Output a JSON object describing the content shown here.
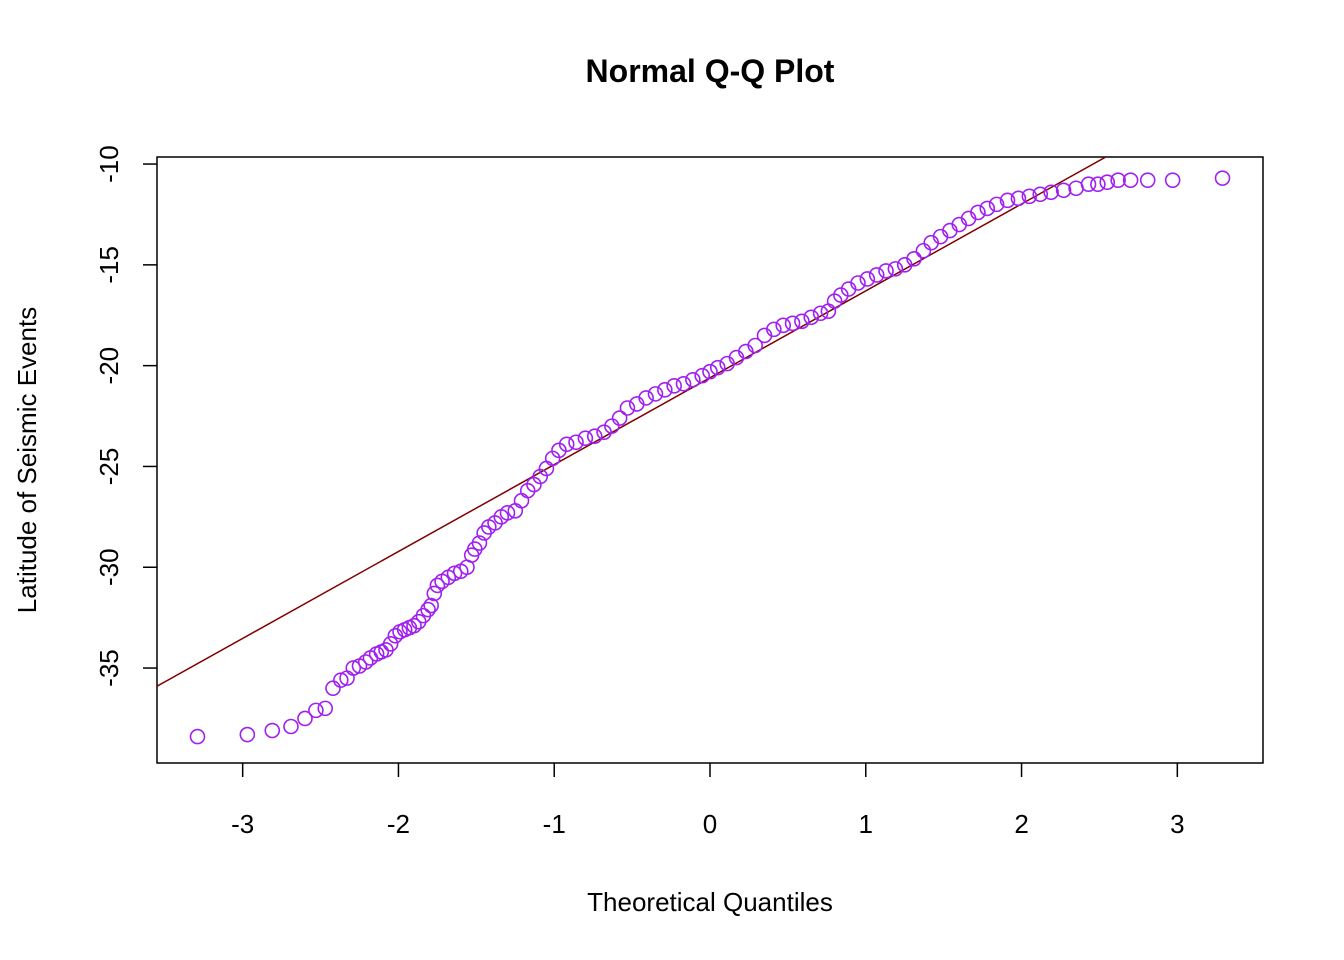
{
  "chart_data": {
    "type": "scatter",
    "title": "Normal Q-Q Plot",
    "x_label": "Theoretical Quantiles",
    "y_label": "Latitude of Seismic Events",
    "xlim": [
      -3.55,
      3.55
    ],
    "ylim": [
      -39.71,
      -9.65
    ],
    "xticks": [
      -3,
      -2,
      -1,
      0,
      1,
      2,
      3
    ],
    "yticks": [
      -10,
      -15,
      -20,
      -25,
      -30,
      -35
    ],
    "color": "#a020f0",
    "reference_line": {
      "intercept": -20.6,
      "slope": 4.31,
      "color": "#800000"
    },
    "x": [
      -3.29,
      -2.97,
      -2.81,
      -2.69,
      -2.6,
      -2.53,
      -2.47,
      -2.42,
      -2.37,
      -2.33,
      -2.29,
      -2.25,
      -2.21,
      -2.18,
      -2.14,
      -2.11,
      -2.08,
      -2.05,
      -2.02,
      -1.99,
      -1.96,
      -1.93,
      -1.9,
      -1.87,
      -1.84,
      -1.81,
      -1.79,
      -1.77,
      -1.75,
      -1.72,
      -1.68,
      -1.64,
      -1.6,
      -1.56,
      -1.53,
      -1.51,
      -1.48,
      -1.45,
      -1.42,
      -1.38,
      -1.34,
      -1.3,
      -1.25,
      -1.21,
      -1.17,
      -1.13,
      -1.09,
      -1.05,
      -1.01,
      -0.97,
      -0.92,
      -0.86,
      -0.8,
      -0.74,
      -0.68,
      -0.63,
      -0.58,
      -0.53,
      -0.47,
      -0.41,
      -0.35,
      -0.29,
      -0.23,
      -0.17,
      -0.11,
      -0.05,
      0.0,
      0.05,
      0.11,
      0.17,
      0.23,
      0.29,
      0.35,
      0.41,
      0.47,
      0.53,
      0.59,
      0.65,
      0.71,
      0.76,
      0.8,
      0.84,
      0.89,
      0.95,
      1.01,
      1.07,
      1.13,
      1.19,
      1.25,
      1.31,
      1.37,
      1.42,
      1.48,
      1.54,
      1.6,
      1.66,
      1.72,
      1.78,
      1.84,
      1.91,
      1.98,
      2.05,
      2.12,
      2.19,
      2.27,
      2.35,
      2.43,
      2.49,
      2.55,
      2.62,
      2.7,
      2.81,
      2.97,
      3.29
    ],
    "values": [
      -38.4,
      -38.3,
      -38.1,
      -37.9,
      -37.5,
      -37.1,
      -37.0,
      -36.0,
      -35.6,
      -35.5,
      -35.0,
      -34.9,
      -34.7,
      -34.5,
      -34.3,
      -34.2,
      -34.1,
      -33.8,
      -33.4,
      -33.2,
      -33.1,
      -33.0,
      -32.9,
      -32.7,
      -32.4,
      -32.1,
      -31.9,
      -31.3,
      -30.9,
      -30.7,
      -30.5,
      -30.3,
      -30.2,
      -30.0,
      -29.4,
      -29.1,
      -28.8,
      -28.3,
      -28.0,
      -27.8,
      -27.5,
      -27.3,
      -27.2,
      -26.7,
      -26.2,
      -25.9,
      -25.5,
      -25.1,
      -24.6,
      -24.2,
      -23.9,
      -23.8,
      -23.6,
      -23.5,
      -23.3,
      -23.0,
      -22.6,
      -22.1,
      -21.9,
      -21.6,
      -21.4,
      -21.2,
      -21.0,
      -20.9,
      -20.7,
      -20.5,
      -20.3,
      -20.1,
      -19.9,
      -19.6,
      -19.3,
      -19.0,
      -18.5,
      -18.2,
      -18.0,
      -17.9,
      -17.8,
      -17.6,
      -17.4,
      -17.3,
      -16.8,
      -16.5,
      -16.2,
      -15.9,
      -15.7,
      -15.5,
      -15.3,
      -15.2,
      -15.0,
      -14.7,
      -14.3,
      -13.9,
      -13.6,
      -13.3,
      -13.0,
      -12.7,
      -12.4,
      -12.2,
      -12.0,
      -11.8,
      -11.7,
      -11.6,
      -11.5,
      -11.4,
      -11.3,
      -11.2,
      -11.0,
      -11.0,
      -10.9,
      -10.8,
      -10.8,
      -10.8,
      -10.8,
      -10.7
    ]
  }
}
